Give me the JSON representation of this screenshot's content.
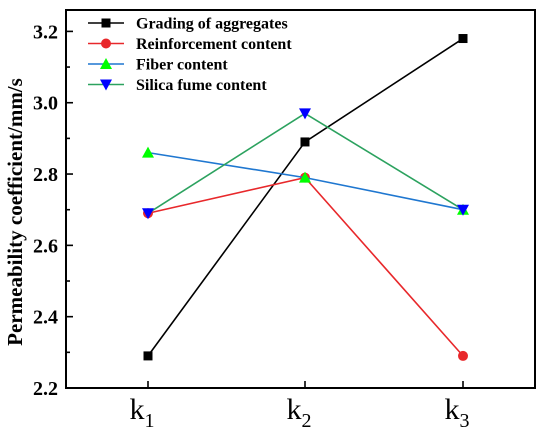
{
  "chart_data": {
    "type": "line",
    "categories": [
      "k1",
      "k2",
      "k3"
    ],
    "x_tick_labels": [
      {
        "base": "k",
        "sub": "1"
      },
      {
        "base": "k",
        "sub": "2"
      },
      {
        "base": "k",
        "sub": "3"
      }
    ],
    "ylabel": "Permeability coefficient/mm/s",
    "ylim": [
      2.2,
      3.26
    ],
    "yticks": [
      "2.2",
      "2.4",
      "2.6",
      "2.8",
      "3.0",
      "3.2"
    ],
    "legend_position": "top-left",
    "series": [
      {
        "name": "Grading of aggregates",
        "color": "#000000",
        "marker": "square",
        "values": [
          2.29,
          2.89,
          3.18
        ]
      },
      {
        "name": "Reinforcement content",
        "color": "#e8282b",
        "marker": "circle",
        "values": [
          2.69,
          2.79,
          2.29
        ]
      },
      {
        "name": "Fiber content",
        "color": "#1f77d0",
        "marker": "triangle-up",
        "values": [
          2.86,
          2.79,
          2.7
        ]
      },
      {
        "name": "Silica fume content",
        "color": "#2ca25f",
        "marker": "triangle-down",
        "values": [
          2.69,
          2.97,
          2.7
        ]
      }
    ],
    "marker_colors": {
      "Fiber content": "#00ff00",
      "Silica fume content": "#0000ff"
    }
  }
}
